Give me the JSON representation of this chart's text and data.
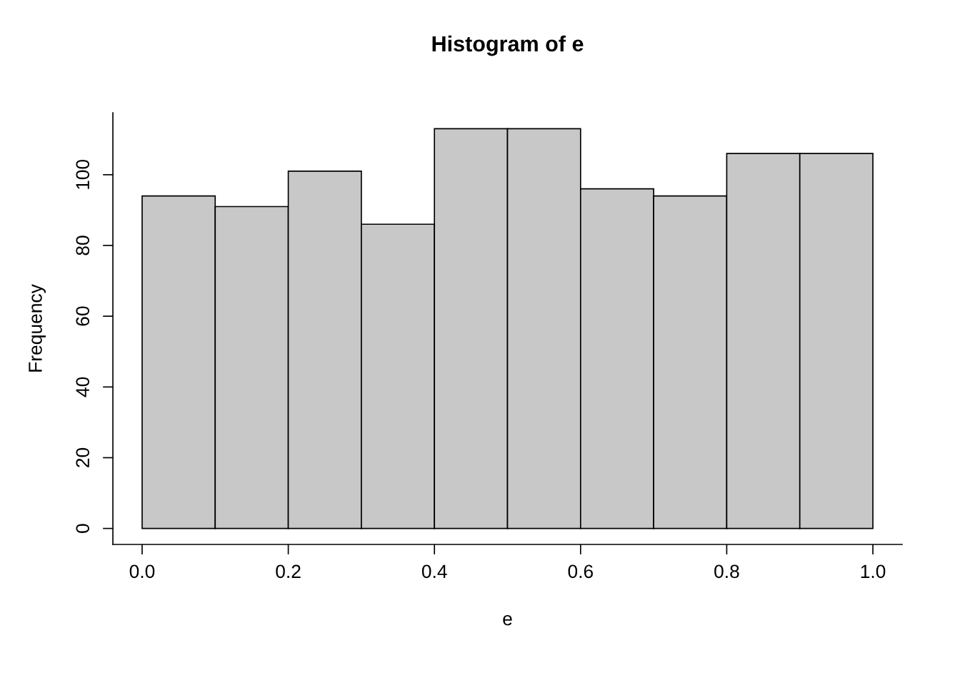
{
  "chart_data": {
    "type": "histogram",
    "title": "Histogram of e",
    "xlabel": "e",
    "ylabel": "Frequency",
    "bins": [
      0.0,
      0.1,
      0.2,
      0.3,
      0.4,
      0.5,
      0.6,
      0.7,
      0.8,
      0.9,
      1.0
    ],
    "values": [
      94,
      91,
      101,
      86,
      113,
      113,
      96,
      94,
      106,
      106
    ],
    "color": "#c8c8c8",
    "xlim": [
      -0.04,
      1.04
    ],
    "ylim": [
      -4.52,
      117.52
    ],
    "xticks": [
      {
        "value": 0,
        "label": "0.0"
      },
      0.2,
      0.4,
      0.6,
      0.8,
      {
        "value": 1,
        "label": "1.0"
      }
    ],
    "yticks": [
      0,
      20,
      40,
      60,
      80,
      100
    ],
    "grid": false
  }
}
